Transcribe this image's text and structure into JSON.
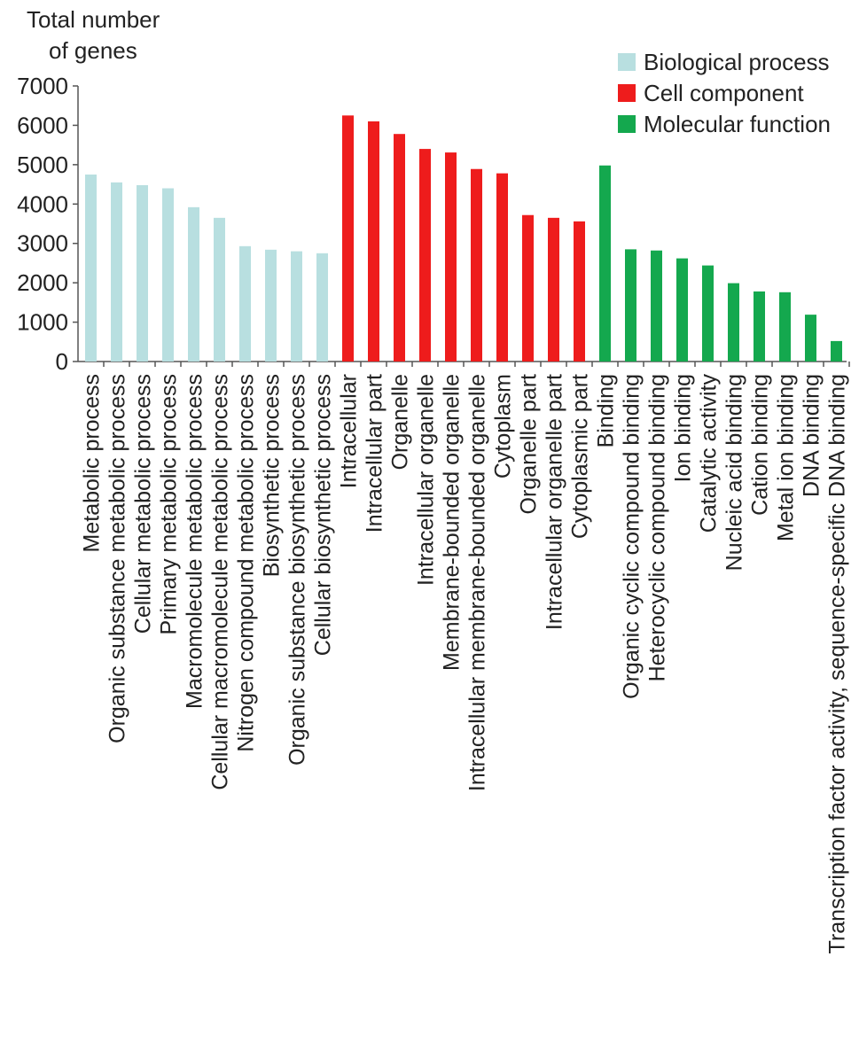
{
  "chart_data": {
    "type": "bar",
    "ylabel": "Total number of genes",
    "ylabel_lines": [
      "Total number",
      "of genes"
    ],
    "xlabel": "",
    "ylim": [
      0,
      7000
    ],
    "yticks": [
      0,
      1000,
      2000,
      3000,
      4000,
      5000,
      6000,
      7000
    ],
    "grid": false,
    "legend_position": "top-right",
    "series": [
      {
        "name": "Biological process",
        "color": "#b8dfe0",
        "categories": [
          "Metabolic process",
          "Organic substance metabolic process",
          "Cellular metabolic process",
          "Primary metabolic process",
          "Macromolecule metabolic process",
          "Cellular macromolecule metabolic process",
          "Nitrogen compound metabolic process",
          "Biosynthetic process",
          "Organic substance biosynthetic process",
          "Cellular biosynthetic process"
        ],
        "values": [
          4750,
          4550,
          4480,
          4400,
          3920,
          3650,
          2930,
          2840,
          2800,
          2750
        ]
      },
      {
        "name": "Cell component",
        "color": "#ee1c1c",
        "categories": [
          "Intracellular",
          "Intracellular part",
          "Organelle",
          "Intracellular organelle",
          "Membrane-bounded organelle",
          "Intracellular membrane-bounded organelle",
          "Cytoplasm",
          "Organelle part",
          "Intracellular organelle part",
          "Cytoplasmic part"
        ],
        "values": [
          6250,
          6100,
          5780,
          5400,
          5310,
          4890,
          4780,
          3720,
          3650,
          3560
        ]
      },
      {
        "name": "Molecular function",
        "color": "#14a84e",
        "categories": [
          "Binding",
          "Organic cyclic compound binding",
          "Heterocyclic compound binding",
          "Ion binding",
          "Catalytic activity",
          "Nucleic acid binding",
          "Cation binding",
          "Metal ion binding",
          "DNA binding",
          "Transcription factor activity, sequence-specific DNA binding"
        ],
        "values": [
          4980,
          2850,
          2820,
          2620,
          2440,
          1990,
          1780,
          1760,
          1190,
          520
        ]
      }
    ]
  }
}
